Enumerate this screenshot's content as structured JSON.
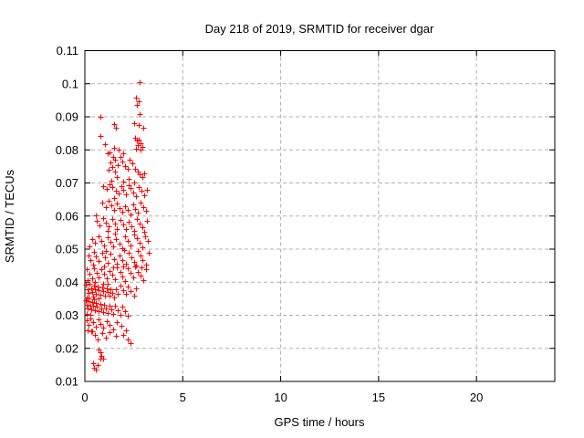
{
  "chart_data": {
    "type": "scatter",
    "title": "Day 218 of 2019, SRMTID for receiver dgar",
    "xlabel": "GPS time / hours",
    "ylabel": "SRMTID / TECUs",
    "xlim": [
      0,
      24
    ],
    "ylim": [
      0.01,
      0.11
    ],
    "xticks": {
      "values": [
        0,
        5,
        10,
        15,
        20
      ],
      "labels": [
        "0",
        "5",
        "10",
        "15",
        "20"
      ]
    },
    "yticks": {
      "values": [
        0.01,
        0.02,
        0.03,
        0.04,
        0.05,
        0.06,
        0.07,
        0.08,
        0.09,
        0.1,
        0.11
      ],
      "labels": [
        "0.01",
        "0.02",
        "0.03",
        "0.04",
        "0.05",
        "0.06",
        "0.07",
        "0.08",
        "0.09",
        "0.1",
        "0.11"
      ]
    },
    "grid": true,
    "grid_color": "#b0b0b0",
    "legend": false,
    "marker": {
      "shape": "plus",
      "color": "#ff0000",
      "size": 7
    },
    "series": [
      {
        "name": "SRMTID",
        "points": [
          [
            2.8,
            0.1005
          ],
          [
            2.62,
            0.0958
          ],
          [
            2.73,
            0.0947
          ],
          [
            2.67,
            0.0937
          ],
          [
            2.81,
            0.0908
          ],
          [
            0.8,
            0.0899
          ],
          [
            2.51,
            0.0881
          ],
          [
            1.49,
            0.0878
          ],
          [
            2.73,
            0.0874
          ],
          [
            1.6,
            0.0868
          ],
          [
            2.97,
            0.0866
          ],
          [
            0.81,
            0.0842
          ],
          [
            1.03,
            0.0817
          ],
          [
            1.5,
            0.0807
          ],
          [
            1.73,
            0.0802
          ],
          [
            1.17,
            0.0791
          ],
          [
            1.96,
            0.0789
          ],
          [
            2.57,
            0.0836
          ],
          [
            2.65,
            0.0827
          ],
          [
            2.77,
            0.0832
          ],
          [
            2.86,
            0.0819
          ],
          [
            2.92,
            0.0809
          ],
          [
            2.7,
            0.0814
          ],
          [
            2.6,
            0.0804
          ],
          [
            2.83,
            0.0801
          ],
          [
            1.25,
            0.0793
          ],
          [
            1.45,
            0.078
          ],
          [
            1.55,
            0.0771
          ],
          [
            1.3,
            0.0762
          ],
          [
            1.68,
            0.0755
          ],
          [
            1.4,
            0.0748
          ],
          [
            1.22,
            0.0741
          ],
          [
            1.52,
            0.0735
          ],
          [
            1.82,
            0.0778
          ],
          [
            1.9,
            0.0766
          ],
          [
            2.05,
            0.0752
          ],
          [
            2.18,
            0.0744
          ],
          [
            2.3,
            0.077
          ],
          [
            2.42,
            0.0758
          ],
          [
            2.55,
            0.0742
          ],
          [
            2.68,
            0.0735
          ],
          [
            2.8,
            0.0726
          ],
          [
            2.95,
            0.0718
          ],
          [
            3.05,
            0.073
          ],
          [
            2.25,
            0.0712
          ],
          [
            1.95,
            0.0705
          ],
          [
            1.62,
            0.0718
          ],
          [
            1.35,
            0.0708
          ],
          [
            2.5,
            0.0702
          ],
          [
            0.95,
            0.069
          ],
          [
            1.1,
            0.0682
          ],
          [
            1.28,
            0.0695
          ],
          [
            1.42,
            0.0688
          ],
          [
            1.58,
            0.0676
          ],
          [
            1.72,
            0.0668
          ],
          [
            1.85,
            0.069
          ],
          [
            1.98,
            0.0678
          ],
          [
            2.1,
            0.0665
          ],
          [
            2.22,
            0.0692
          ],
          [
            2.35,
            0.0684
          ],
          [
            2.48,
            0.0672
          ],
          [
            2.62,
            0.066
          ],
          [
            2.75,
            0.0688
          ],
          [
            2.88,
            0.0676
          ],
          [
            3.02,
            0.0662
          ],
          [
            3.15,
            0.068
          ],
          [
            1.5,
            0.0655
          ],
          [
            0.9,
            0.064
          ],
          [
            1.05,
            0.0628
          ],
          [
            1.2,
            0.0645
          ],
          [
            1.35,
            0.0632
          ],
          [
            1.48,
            0.062
          ],
          [
            1.62,
            0.0638
          ],
          [
            1.78,
            0.0625
          ],
          [
            1.92,
            0.0612
          ],
          [
            2.05,
            0.063
          ],
          [
            2.2,
            0.0618
          ],
          [
            2.32,
            0.0605
          ],
          [
            2.45,
            0.0635
          ],
          [
            2.58,
            0.0622
          ],
          [
            2.72,
            0.061
          ],
          [
            2.85,
            0.0642
          ],
          [
            2.98,
            0.0628
          ],
          [
            3.1,
            0.0615
          ],
          [
            0.56,
            0.0602
          ],
          [
            0.6,
            0.0585
          ],
          [
            0.75,
            0.0572
          ],
          [
            0.92,
            0.0595
          ],
          [
            1.08,
            0.058
          ],
          [
            1.22,
            0.0568
          ],
          [
            1.38,
            0.059
          ],
          [
            1.52,
            0.0576
          ],
          [
            1.65,
            0.0562
          ],
          [
            1.8,
            0.0588
          ],
          [
            1.95,
            0.0574
          ],
          [
            2.08,
            0.056
          ],
          [
            2.22,
            0.0582
          ],
          [
            2.38,
            0.057
          ],
          [
            2.52,
            0.0556
          ],
          [
            2.65,
            0.0592
          ],
          [
            2.78,
            0.0578
          ],
          [
            2.92,
            0.0565
          ],
          [
            3.05,
            0.0552
          ],
          [
            3.18,
            0.0585
          ],
          [
            1.15,
            0.0555
          ],
          [
            0.35,
            0.053
          ],
          [
            0.52,
            0.0518
          ],
          [
            0.68,
            0.054
          ],
          [
            0.85,
            0.0525
          ],
          [
            1.0,
            0.0512
          ],
          [
            1.15,
            0.0535
          ],
          [
            1.3,
            0.0522
          ],
          [
            1.45,
            0.0508
          ],
          [
            1.6,
            0.053
          ],
          [
            1.75,
            0.0516
          ],
          [
            1.9,
            0.0502
          ],
          [
            2.05,
            0.0538
          ],
          [
            2.2,
            0.0524
          ],
          [
            2.35,
            0.051
          ],
          [
            2.5,
            0.0545
          ],
          [
            2.65,
            0.0532
          ],
          [
            2.8,
            0.0518
          ],
          [
            2.95,
            0.0505
          ],
          [
            3.08,
            0.054
          ],
          [
            3.22,
            0.0526
          ],
          [
            0.22,
            0.0508
          ],
          [
            1.52,
            0.0548
          ],
          [
            0.18,
            0.048
          ],
          [
            0.3,
            0.0468
          ],
          [
            0.45,
            0.0492
          ],
          [
            0.58,
            0.0478
          ],
          [
            0.72,
            0.0465
          ],
          [
            0.88,
            0.0488
          ],
          [
            1.02,
            0.0474
          ],
          [
            1.18,
            0.046
          ],
          [
            1.32,
            0.0485
          ],
          [
            1.48,
            0.047
          ],
          [
            1.62,
            0.0456
          ],
          [
            1.78,
            0.0482
          ],
          [
            1.92,
            0.0468
          ],
          [
            2.08,
            0.0455
          ],
          [
            2.22,
            0.049
          ],
          [
            2.38,
            0.0476
          ],
          [
            2.52,
            0.0462
          ],
          [
            2.68,
            0.0495
          ],
          [
            2.82,
            0.048
          ],
          [
            2.95,
            0.0466
          ],
          [
            3.1,
            0.0452
          ],
          [
            3.25,
            0.0488
          ],
          [
            0.4,
            0.0452
          ],
          [
            1.05,
            0.0495
          ],
          [
            2.0,
            0.0498
          ],
          [
            2.6,
            0.045
          ],
          [
            0.1,
            0.0438
          ],
          [
            0.22,
            0.0425
          ],
          [
            0.35,
            0.0412
          ],
          [
            0.48,
            0.0442
          ],
          [
            0.6,
            0.0428
          ],
          [
            0.72,
            0.0415
          ],
          [
            0.85,
            0.044
          ],
          [
            0.98,
            0.0426
          ],
          [
            1.1,
            0.0412
          ],
          [
            1.25,
            0.0435
          ],
          [
            1.38,
            0.0422
          ],
          [
            1.52,
            0.0408
          ],
          [
            1.65,
            0.0445
          ],
          [
            1.8,
            0.043
          ],
          [
            1.92,
            0.0418
          ],
          [
            2.05,
            0.0404
          ],
          [
            2.18,
            0.0442
          ],
          [
            2.32,
            0.0428
          ],
          [
            2.45,
            0.0415
          ],
          [
            2.58,
            0.0448
          ],
          [
            2.72,
            0.0432
          ],
          [
            2.85,
            0.042
          ],
          [
            2.98,
            0.0406
          ],
          [
            3.12,
            0.0438
          ],
          [
            0.15,
            0.0405
          ],
          [
            0.52,
            0.0402
          ],
          [
            1.0,
            0.0448
          ],
          [
            1.45,
            0.0445
          ],
          [
            1.95,
            0.0448
          ],
          [
            2.9,
            0.0445
          ],
          [
            0.06,
            0.0392
          ],
          [
            0.12,
            0.038
          ],
          [
            0.18,
            0.0368
          ],
          [
            0.25,
            0.0395
          ],
          [
            0.32,
            0.0382
          ],
          [
            0.38,
            0.037
          ],
          [
            0.45,
            0.039
          ],
          [
            0.52,
            0.0378
          ],
          [
            0.58,
            0.0365
          ],
          [
            0.65,
            0.0388
          ],
          [
            0.72,
            0.0375
          ],
          [
            0.8,
            0.0362
          ],
          [
            0.88,
            0.0385
          ],
          [
            0.95,
            0.0372
          ],
          [
            1.02,
            0.036
          ],
          [
            1.1,
            0.0382
          ],
          [
            1.18,
            0.037
          ],
          [
            1.25,
            0.0358
          ],
          [
            1.32,
            0.038
          ],
          [
            1.4,
            0.0368
          ],
          [
            1.5,
            0.0355
          ],
          [
            1.6,
            0.0378
          ],
          [
            1.7,
            0.0366
          ],
          [
            1.82,
            0.039
          ],
          [
            1.95,
            0.0376
          ],
          [
            2.08,
            0.0364
          ],
          [
            2.2,
            0.0386
          ],
          [
            2.35,
            0.0372
          ],
          [
            2.5,
            0.036
          ],
          [
            0.08,
            0.0355
          ],
          [
            0.2,
            0.0352
          ],
          [
            0.42,
            0.0356
          ],
          [
            0.68,
            0.0352
          ],
          [
            0.92,
            0.0396
          ],
          [
            1.15,
            0.0394
          ],
          [
            2.62,
            0.0382
          ],
          [
            0.05,
            0.0345
          ],
          [
            0.1,
            0.0332
          ],
          [
            0.15,
            0.032
          ],
          [
            0.2,
            0.0342
          ],
          [
            0.26,
            0.033
          ],
          [
            0.32,
            0.0318
          ],
          [
            0.38,
            0.034
          ],
          [
            0.44,
            0.0328
          ],
          [
            0.5,
            0.0315
          ],
          [
            0.56,
            0.0338
          ],
          [
            0.62,
            0.0325
          ],
          [
            0.7,
            0.0312
          ],
          [
            0.78,
            0.0335
          ],
          [
            0.85,
            0.0322
          ],
          [
            0.92,
            0.031
          ],
          [
            1.0,
            0.0332
          ],
          [
            1.08,
            0.032
          ],
          [
            1.16,
            0.0308
          ],
          [
            1.25,
            0.033
          ],
          [
            1.35,
            0.0318
          ],
          [
            1.45,
            0.0305
          ],
          [
            1.55,
            0.0328
          ],
          [
            1.68,
            0.0315
          ],
          [
            1.8,
            0.0302
          ],
          [
            1.92,
            0.0325
          ],
          [
            2.05,
            0.0312
          ],
          [
            2.18,
            0.03
          ],
          [
            0.07,
            0.0305
          ],
          [
            0.29,
            0.0302
          ],
          [
            0.47,
            0.0348
          ],
          [
            0.08,
            0.0285
          ],
          [
            0.18,
            0.0272
          ],
          [
            0.3,
            0.029
          ],
          [
            0.42,
            0.0278
          ],
          [
            0.55,
            0.0265
          ],
          [
            0.68,
            0.0288
          ],
          [
            0.8,
            0.0275
          ],
          [
            0.95,
            0.0262
          ],
          [
            1.1,
            0.0282
          ],
          [
            1.28,
            0.027
          ],
          [
            1.45,
            0.0258
          ],
          [
            1.65,
            0.028
          ],
          [
            1.85,
            0.0268
          ],
          [
            2.1,
            0.0255
          ],
          [
            0.12,
            0.0255
          ],
          [
            0.35,
            0.0252
          ],
          [
            0.33,
            0.0253
          ],
          [
            0.5,
            0.024
          ],
          [
            0.65,
            0.0228
          ],
          [
            0.9,
            0.0245
          ],
          [
            1.05,
            0.0232
          ],
          [
            1.26,
            0.0248
          ],
          [
            1.58,
            0.0239
          ],
          [
            1.95,
            0.0242
          ],
          [
            2.19,
            0.0228
          ],
          [
            2.33,
            0.0217
          ],
          [
            0.7,
            0.0197
          ],
          [
            0.78,
            0.0188
          ],
          [
            0.85,
            0.0178
          ],
          [
            0.93,
            0.0168
          ],
          [
            0.42,
            0.0156
          ],
          [
            0.65,
            0.015
          ],
          [
            0.79,
            0.0169
          ],
          [
            0.47,
            0.0142
          ],
          [
            0.56,
            0.0136
          ]
        ]
      }
    ]
  }
}
